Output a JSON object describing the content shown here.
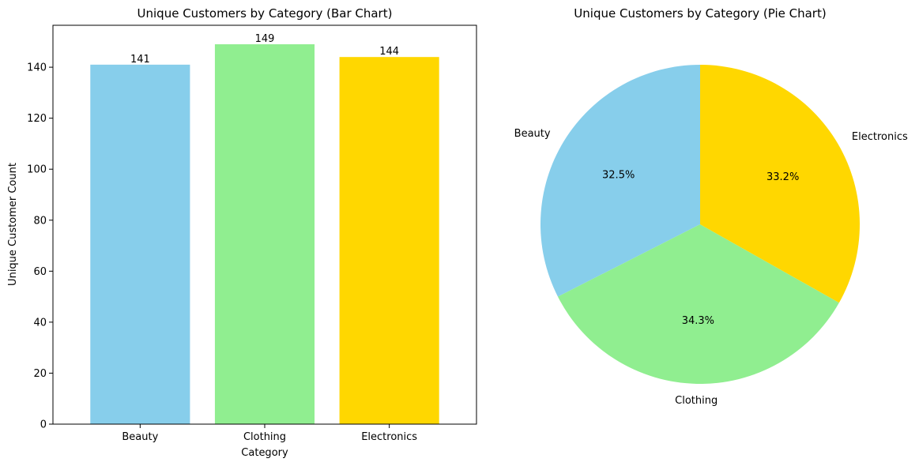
{
  "chart_data": [
    {
      "type": "bar",
      "title": "Unique Customers by Category (Bar Chart)",
      "xlabel": "Category",
      "ylabel": "Unique Customer Count",
      "categories": [
        "Beauty",
        "Clothing",
        "Electronics"
      ],
      "values": [
        141,
        149,
        144
      ],
      "value_labels": [
        "141",
        "149",
        "144"
      ],
      "colors": [
        "#87CEEB",
        "#90EE90",
        "#FFD700"
      ],
      "ylim": [
        0,
        156.45
      ],
      "yticks": [
        0,
        20,
        40,
        60,
        80,
        100,
        120,
        140
      ],
      "grid": false
    },
    {
      "type": "pie",
      "title": "Unique Customers by Category (Pie Chart)",
      "labels": [
        "Beauty",
        "Clothing",
        "Electronics"
      ],
      "values": [
        141,
        149,
        144
      ],
      "percent_labels": [
        "32.5%",
        "34.3%",
        "33.2%"
      ],
      "colors": [
        "#87CEEB",
        "#90EE90",
        "#FFD700"
      ],
      "start_angle": 90
    }
  ]
}
